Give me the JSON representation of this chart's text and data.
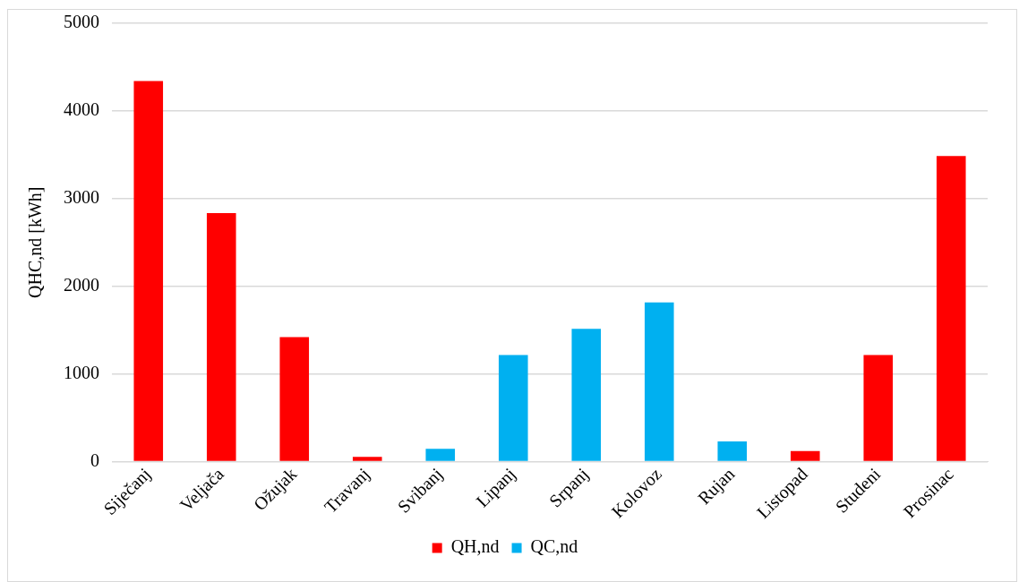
{
  "chart_data": {
    "type": "bar",
    "ylabel": "QHC,nd [kWh]",
    "stacked": true,
    "grid": "y",
    "legend": "bottom",
    "categories": [
      "Siječanj",
      "Veljača",
      "Ožujak",
      "Travanj",
      "Svibanj",
      "Lipanj",
      "Srpanj",
      "Kolovoz",
      "Rujan",
      "Listopad",
      "Studeni",
      "Prosinac"
    ],
    "series": [
      {
        "name": "QH,nd",
        "color": "#ff0000",
        "values": [
          4340,
          2835,
          1420,
          55,
          null,
          null,
          null,
          null,
          null,
          120,
          1215,
          3485
        ]
      },
      {
        "name": "QC,nd",
        "color": "#00b0f0",
        "values": [
          null,
          null,
          null,
          null,
          145,
          1215,
          1515,
          1815,
          230,
          null,
          null,
          null
        ]
      }
    ],
    "ylim": [
      0,
      5000
    ],
    "yticks": [
      0,
      1000,
      2000,
      3000,
      4000,
      5000
    ]
  }
}
